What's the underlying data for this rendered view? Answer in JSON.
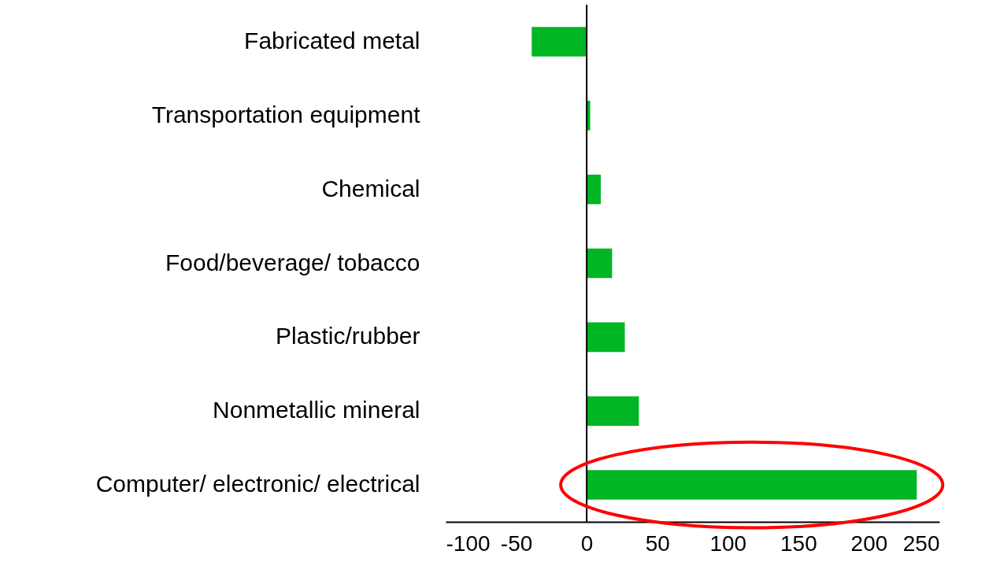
{
  "chart_data": {
    "type": "bar",
    "orientation": "horizontal",
    "categories": [
      "Fabricated metal",
      "Transportation equipment",
      "Chemical",
      "Food/beverage/ tobacco",
      "Plastic/rubber",
      "Nonmetallic mineral",
      "Computer/ electronic/ electrical"
    ],
    "values": [
      -39,
      2.5,
      10,
      18,
      27,
      37,
      234
    ],
    "color": "#00b624",
    "xlim": [
      -100,
      250
    ],
    "xticks": [
      -100,
      -50,
      0,
      50,
      100,
      150,
      200,
      250
    ],
    "grid": false,
    "ref_lines": [
      {
        "axis": "x",
        "value": 0,
        "color": "#000000"
      }
    ]
  }
}
